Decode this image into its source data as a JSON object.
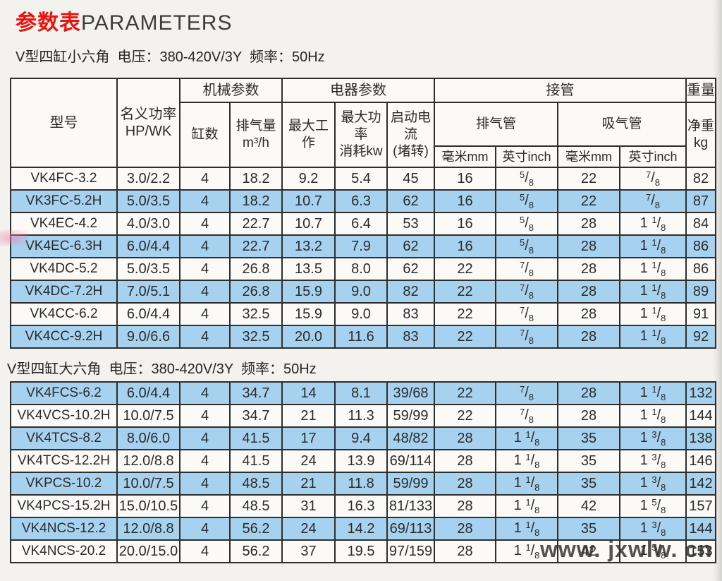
{
  "page": {
    "title_cn": "参数表",
    "title_en": "PARAMETERS",
    "accent_red": "#e6150e",
    "row_blue_color": "#a6d2f0",
    "watermark_text": "www. jxwlw. cn"
  },
  "table_header": {
    "model": "型号",
    "nominal_power": [
      "名义功率",
      "HP/WK"
    ],
    "mechanical_group": "机械参数",
    "cylinders": "缸数",
    "displacement": [
      "排气量",
      "m³/h"
    ],
    "electrical_group": "电器参数",
    "max_working": "最大工作",
    "max_power": [
      "最大功率",
      "消耗kw"
    ],
    "start_current": [
      "启动电流",
      "(堵转)"
    ],
    "piping_group": "接管",
    "discharge_pipe": "排气管",
    "suction_pipe": "吸气管",
    "mm_label": "毫米mm",
    "inch_label": "英寸inch",
    "weight_group": "重量",
    "net_weight": [
      "净重",
      "kg"
    ]
  },
  "tables": [
    {
      "subtitle": "V型四缸小六角  电压：380-420V/3Y  频率：50Hz",
      "shaded_rows": [
        1,
        3,
        5,
        7
      ],
      "rows": [
        [
          "VK4FC-3.2",
          "3.0/2.2",
          "4",
          "18.2",
          "9.2",
          "5.4",
          "45",
          "16",
          "5/8",
          "22",
          "7/8",
          "82"
        ],
        [
          "VK3FC-5.2H",
          "5.0/3.5",
          "4",
          "18.2",
          "10.7",
          "6.3",
          "62",
          "16",
          "5/8",
          "22",
          "7/8",
          "87"
        ],
        [
          "VK4EC-4.2",
          "4.0/3.0",
          "4",
          "22.7",
          "10.7",
          "6.4",
          "53",
          "16",
          "5/8",
          "28",
          "1 1/8",
          "84"
        ],
        [
          "VK4EC-6.3H",
          "6.0/4.4",
          "4",
          "22.7",
          "13.2",
          "7.9",
          "62",
          "16",
          "5/8",
          "28",
          "1 1/8",
          "86"
        ],
        [
          "VK4DC-5.2",
          "5.0/3.5",
          "4",
          "26.8",
          "13.5",
          "8.0",
          "62",
          "22",
          "7/8",
          "28",
          "1 1/8",
          "86"
        ],
        [
          "VK4DC-7.2H",
          "7.0/5.1",
          "4",
          "26.8",
          "15.9",
          "9.0",
          "82",
          "22",
          "7/8",
          "28",
          "1 1/8",
          "89"
        ],
        [
          "VK4CC-6.2",
          "6.0/4.4",
          "4",
          "32.5",
          "15.9",
          "9.0",
          "83",
          "22",
          "7/8",
          "28",
          "1 1/8",
          "91"
        ],
        [
          "VK4CC-9.2H",
          "9.0/6.6",
          "4",
          "32.5",
          "20.0",
          "11.6",
          "83",
          "22",
          "7/8",
          "28",
          "1 1/8",
          "92"
        ]
      ]
    },
    {
      "subtitle": "V型四缸大六角  电压：380-420V/3Y  频率：50Hz",
      "shaded_rows": [
        0,
        2,
        4,
        6
      ],
      "rows": [
        [
          "VK4FCS-6.2",
          "6.0/4.4",
          "4",
          "34.7",
          "14",
          "8.1",
          "39/68",
          "22",
          "7/8",
          "28",
          "1 1/8",
          "132"
        ],
        [
          "VK4VCS-10.2H",
          "10.0/7.5",
          "4",
          "34.7",
          "21",
          "11.3",
          "59/99",
          "22",
          "7/8",
          "28",
          "1 1/8",
          "144"
        ],
        [
          "VK4TCS-8.2",
          "8.0/6.0",
          "4",
          "41.5",
          "17",
          "9.4",
          "48/82",
          "28",
          "1 1/8",
          "35",
          "1 3/8",
          "138"
        ],
        [
          "VK4TCS-12.2H",
          "12.0/8.8",
          "4",
          "41.5",
          "24",
          "13.9",
          "69/114",
          "28",
          "1 1/8",
          "35",
          "1 3/8",
          "146"
        ],
        [
          "VKPCS-10.2",
          "10.0/7.5",
          "4",
          "48.5",
          "21",
          "11.8",
          "59/99",
          "28",
          "1 1/8",
          "35",
          "1 3/8",
          "142"
        ],
        [
          "VK4PCS-15.2H",
          "15.0/10.5",
          "4",
          "48.5",
          "31",
          "16.3",
          "81/133",
          "28",
          "1 1/8",
          "42",
          "1 5/8",
          "157"
        ],
        [
          "VK4NCS-12.2",
          "12.0/8.8",
          "4",
          "56.2",
          "24",
          "14.2",
          "69/113",
          "28",
          "1 1/8",
          "35",
          "1 3/8",
          "144"
        ],
        [
          "VK4NCS-20.2",
          "20.0/15.0",
          "4",
          "56.2",
          "37",
          "19.5",
          "97/159",
          "28",
          "1 1/8",
          "42",
          "1 5/8",
          "153"
        ]
      ]
    }
  ],
  "column_names": [
    "model",
    "nominal-power",
    "cylinders",
    "displacement",
    "max-working",
    "max-power-kw",
    "start-current",
    "discharge-pipe-mm",
    "discharge-pipe-inch",
    "suction-pipe-mm",
    "suction-pipe-inch",
    "net-weight-kg"
  ]
}
